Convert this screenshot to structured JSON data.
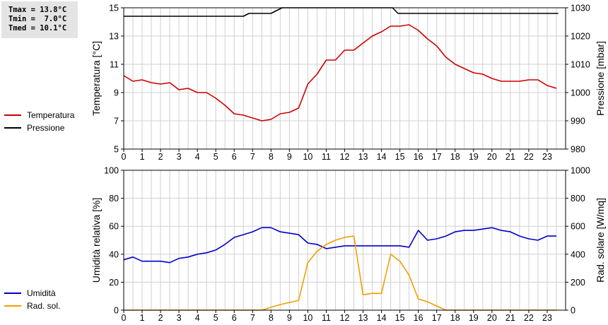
{
  "stats": {
    "tmax": "Tmax = 13.8°C",
    "tmin": "Tmin =  7.0°C",
    "tmed": "Tmed = 10.1°C"
  },
  "legend_top": {
    "temp_label": "Temperatura",
    "temp_color": "#cc0000",
    "press_label": "Pressione",
    "press_color": "#000000"
  },
  "legend_bottom": {
    "hum_label": "Umidità",
    "hum_color": "#0000cc",
    "rad_label": "Rad. sol.",
    "rad_color": "#f0a000"
  },
  "chart_data": [
    {
      "type": "line",
      "ylabel": "Temperatura [°C]",
      "y2label": "Pressione [mbar]",
      "ylim": [
        5,
        15
      ],
      "y2lim": [
        980,
        1030
      ],
      "xlim": [
        0,
        24
      ],
      "yticks": [
        5,
        7,
        9,
        11,
        13,
        15
      ],
      "y2ticks": [
        980,
        990,
        1000,
        1010,
        1020,
        1030
      ],
      "xticks": [
        0,
        1,
        2,
        3,
        4,
        5,
        6,
        7,
        8,
        9,
        10,
        11,
        12,
        13,
        14,
        15,
        16,
        17,
        18,
        19,
        20,
        21,
        22,
        23
      ],
      "grid": true,
      "series": [
        {
          "name": "Temperatura",
          "axis": "left",
          "color": "#cc0000",
          "x": [
            0,
            0.5,
            1,
            1.5,
            2,
            2.5,
            3,
            3.5,
            4,
            4.5,
            5,
            5.5,
            6,
            6.5,
            7,
            7.5,
            8,
            8.5,
            9,
            9.5,
            10,
            10.5,
            11,
            11.5,
            12,
            12.5,
            13,
            13.5,
            14,
            14.5,
            15,
            15.5,
            16,
            16.5,
            17,
            17.5,
            18,
            18.5,
            19,
            19.5,
            20,
            20.5,
            21,
            21.5,
            22,
            22.5,
            23,
            23.5
          ],
          "values": [
            10.2,
            9.8,
            9.9,
            9.7,
            9.6,
            9.7,
            9.2,
            9.3,
            9.0,
            9.0,
            8.6,
            8.1,
            7.5,
            7.4,
            7.2,
            7.0,
            7.1,
            7.5,
            7.6,
            7.9,
            9.6,
            10.3,
            11.3,
            11.3,
            12.0,
            12.0,
            12.5,
            13.0,
            13.3,
            13.7,
            13.7,
            13.8,
            13.4,
            12.8,
            12.3,
            11.5,
            11.0,
            10.7,
            10.4,
            10.3,
            10.0,
            9.8,
            9.8,
            9.8,
            9.9,
            9.9,
            9.5,
            9.3
          ]
        },
        {
          "name": "Pressione",
          "axis": "right",
          "color": "#000000",
          "x": [
            0,
            6.5,
            6.8,
            8,
            8.3,
            8.6,
            14.6,
            14.9,
            23.6
          ],
          "values": [
            1027,
            1027,
            1028,
            1028,
            1029,
            1030,
            1030,
            1028,
            1028
          ]
        }
      ]
    },
    {
      "type": "line",
      "ylabel": "Umidità relativa [%]",
      "y2label": "Rad. solare [W/mq]",
      "ylim": [
        0,
        100
      ],
      "y2lim": [
        0,
        1000
      ],
      "xlim": [
        0,
        24
      ],
      "yticks": [
        0,
        20,
        40,
        60,
        80,
        100
      ],
      "y2ticks": [
        0,
        200,
        400,
        600,
        800,
        1000
      ],
      "xticks": [
        0,
        1,
        2,
        3,
        4,
        5,
        6,
        7,
        8,
        9,
        10,
        11,
        12,
        13,
        14,
        15,
        16,
        17,
        18,
        19,
        20,
        21,
        22,
        23
      ],
      "grid": true,
      "series": [
        {
          "name": "Umidità",
          "axis": "left",
          "color": "#0000cc",
          "x": [
            0,
            0.5,
            1,
            1.5,
            2,
            2.5,
            3,
            3.5,
            4,
            4.5,
            5,
            5.5,
            6,
            6.5,
            7,
            7.5,
            8,
            8.5,
            9,
            9.5,
            10,
            10.5,
            11,
            11.5,
            12,
            12.5,
            13,
            13.5,
            14,
            14.5,
            15,
            15.5,
            16,
            16.5,
            17,
            17.5,
            18,
            18.5,
            19,
            19.5,
            20,
            20.5,
            21,
            21.5,
            22,
            22.5,
            23,
            23.5
          ],
          "values": [
            36,
            38,
            35,
            35,
            35,
            34,
            37,
            38,
            40,
            41,
            43,
            47,
            52,
            54,
            56,
            59,
            59,
            56,
            55,
            54,
            48,
            47,
            44,
            45,
            46,
            46,
            46,
            46,
            46,
            46,
            46,
            45,
            57,
            50,
            51,
            53,
            56,
            57,
            57,
            58,
            59,
            57,
            56,
            53,
            51,
            50,
            53,
            53
          ]
        },
        {
          "name": "Rad. sol.",
          "axis": "right",
          "color": "#f0a000",
          "x": [
            0,
            1,
            2,
            3,
            4,
            5,
            6,
            7,
            7.5,
            8,
            8.5,
            9,
            9.5,
            10,
            10.5,
            11,
            11.5,
            12,
            12.5,
            13,
            13.5,
            14,
            14.5,
            15,
            15.5,
            16,
            16.5,
            17,
            17.5,
            18,
            19,
            20,
            21,
            22,
            23,
            23.5
          ],
          "values": [
            0,
            0,
            0,
            0,
            0,
            0,
            0,
            0,
            0,
            20,
            40,
            55,
            70,
            340,
            420,
            470,
            500,
            520,
            530,
            110,
            120,
            120,
            400,
            350,
            250,
            80,
            60,
            30,
            0,
            0,
            0,
            0,
            0,
            0,
            0,
            0
          ]
        }
      ]
    }
  ]
}
